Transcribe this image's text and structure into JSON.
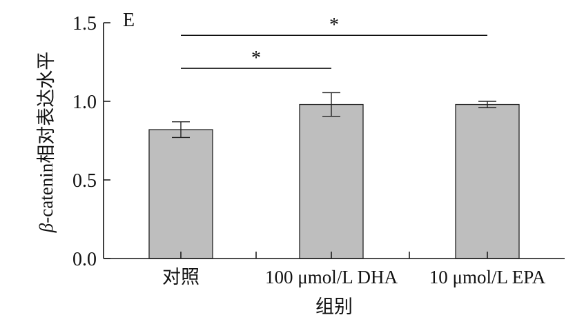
{
  "chart_data": {
    "type": "bar",
    "panel_label": "E",
    "categories": [
      "对照",
      "100 μmol/L DHA",
      "10 μmol/L EPA"
    ],
    "values": [
      0.82,
      0.98,
      0.98
    ],
    "errors": [
      0.05,
      0.075,
      0.02
    ],
    "xlabel": "组别",
    "ylabel_symbol": "β",
    "ylabel_rest": "-catenin相对表达水平",
    "ylim": [
      0,
      1.5
    ],
    "yticks": [
      0.0,
      0.5,
      1.0,
      1.5
    ],
    "ytick_labels": [
      "0.0",
      "0.5",
      "1.0",
      "1.5"
    ],
    "bar_color": "#bebebe",
    "significance": [
      {
        "from": 0,
        "to": 2,
        "label": "*",
        "y": 1.42
      },
      {
        "from": 0,
        "to": 1,
        "label": "*",
        "y": 1.21
      }
    ]
  }
}
